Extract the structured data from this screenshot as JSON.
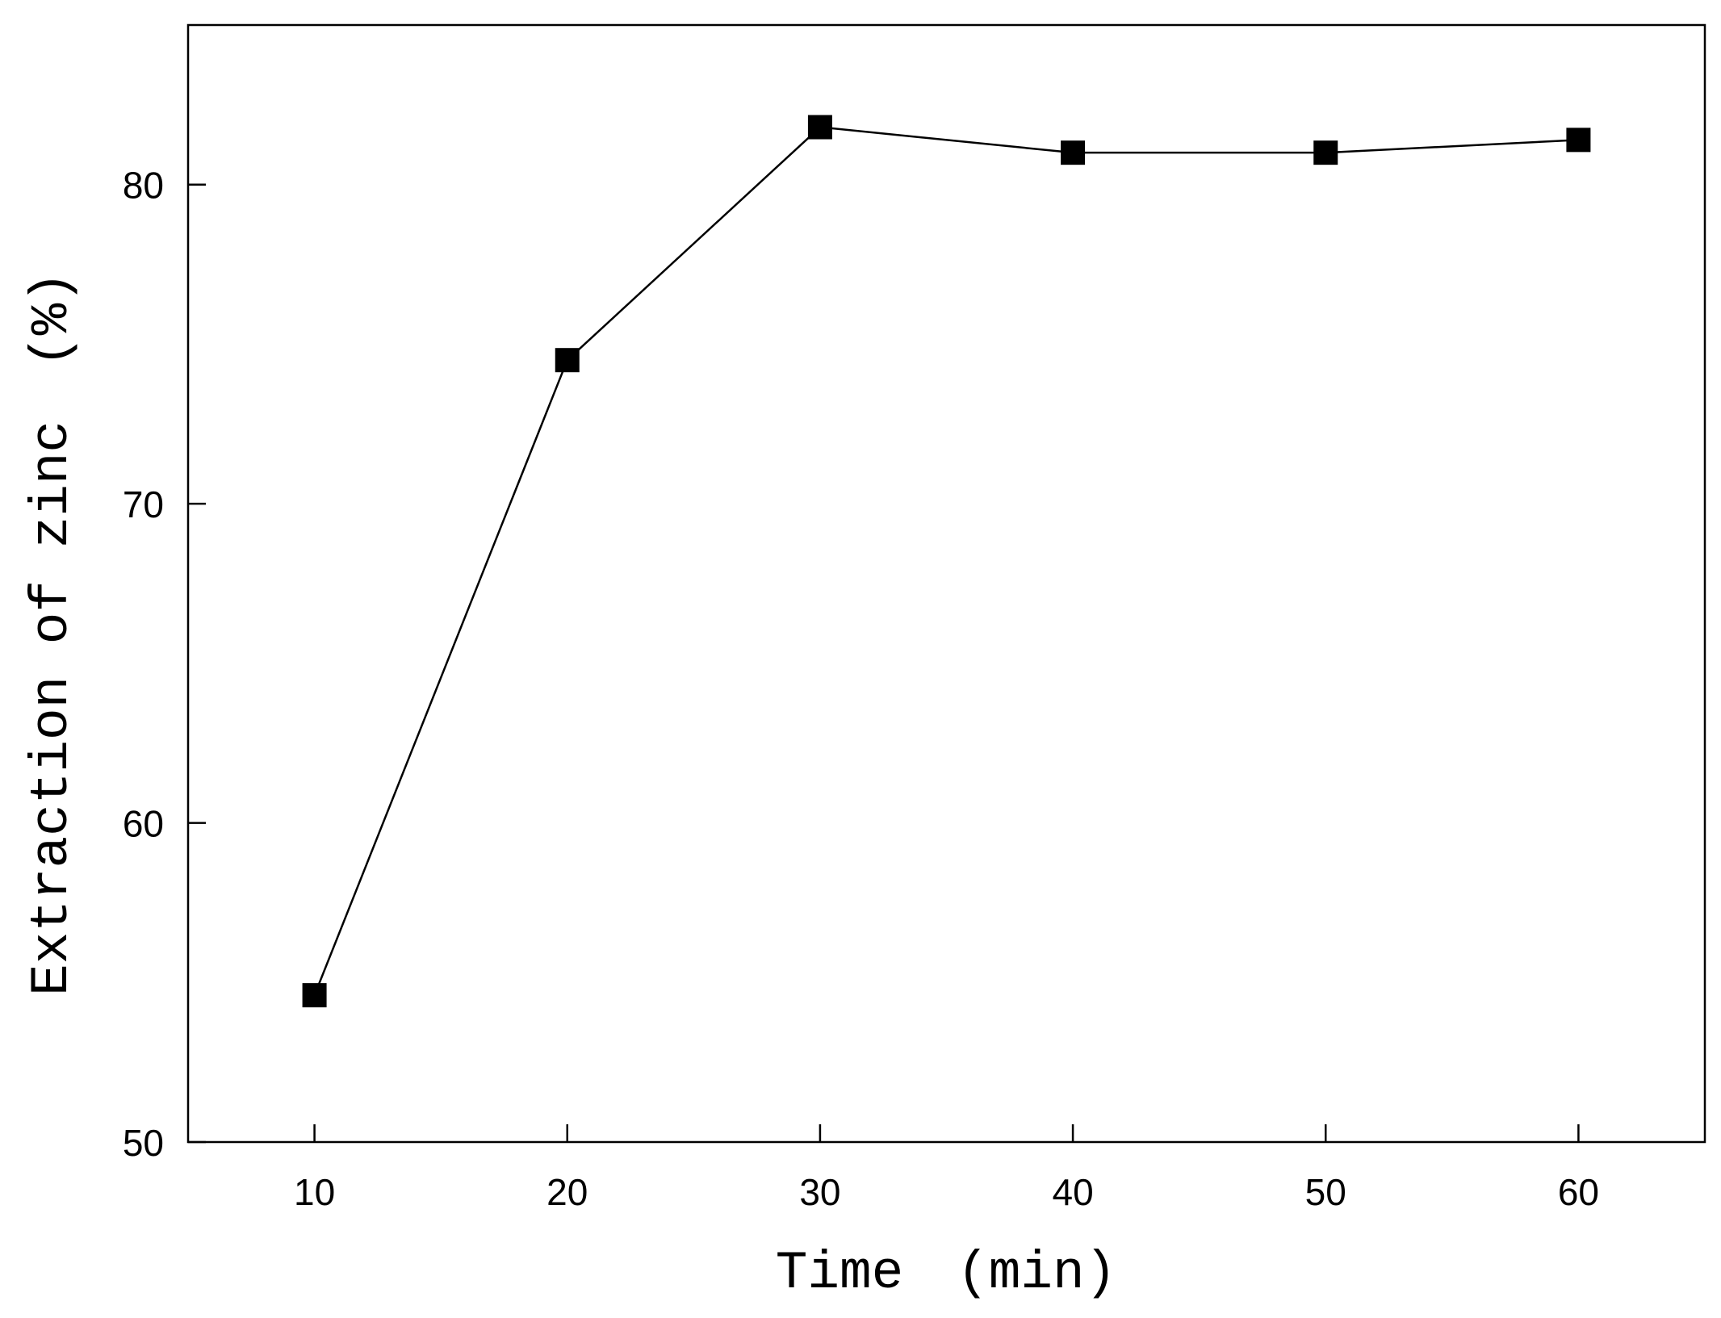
{
  "chart_data": {
    "type": "line",
    "xlabel": "Time　(min)",
    "ylabel": "Extraction of zinc　(%)",
    "xlim": [
      5,
      65
    ],
    "ylim": [
      50,
      85
    ],
    "xticks": [
      "10",
      "20",
      "30",
      "40",
      "50",
      "60"
    ],
    "yticks": [
      "50",
      "60",
      "70",
      "80"
    ],
    "grid": false,
    "marker": "filled-square",
    "series": [
      {
        "x": [
          10,
          20,
          30,
          40,
          50,
          60
        ],
        "y": [
          54.6,
          74.5,
          81.8,
          81.0,
          81.0,
          81.4
        ]
      }
    ],
    "line_color": "#000000"
  }
}
